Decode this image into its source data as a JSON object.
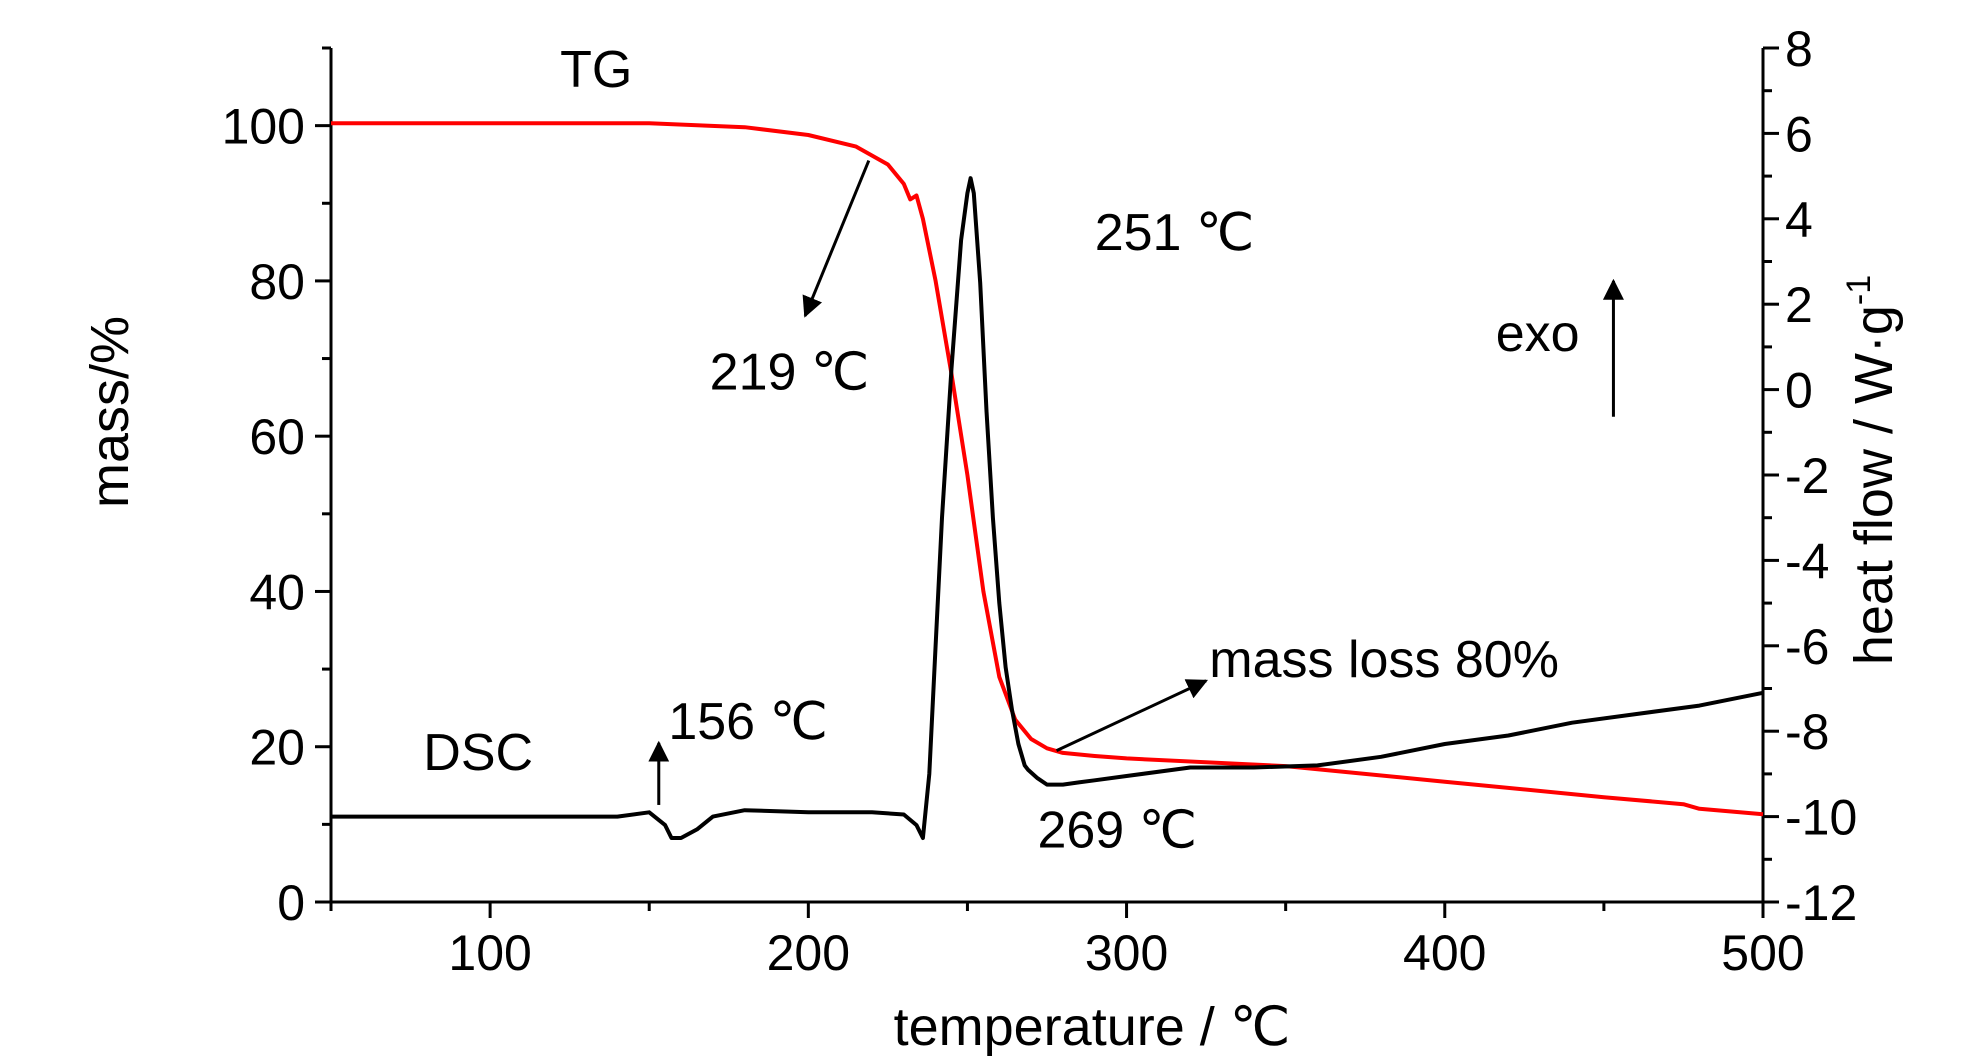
{
  "chart_data": {
    "type": "line",
    "xlabel": "temperature / ℃",
    "ylabel_left": "mass/%",
    "ylabel_right": "heat flow / W·g",
    "ylabel_right_superscript": "-1",
    "xlim": [
      50,
      500
    ],
    "ylim_left": [
      0,
      110
    ],
    "ylim_right": [
      -12,
      8
    ],
    "x_ticks": [
      100,
      200,
      300,
      400,
      500
    ],
    "y_left_ticks": [
      0,
      20,
      40,
      60,
      80,
      100
    ],
    "y_right_ticks": [
      -12,
      -10,
      -8,
      -6,
      -4,
      -2,
      0,
      2,
      4,
      6,
      8
    ],
    "series": [
      {
        "name": "TG",
        "axis": "left",
        "color": "#ff0000",
        "x": [
          50,
          100,
          150,
          180,
          200,
          215,
          225,
          230,
          232,
          234,
          236,
          240,
          245,
          250,
          255,
          260,
          265,
          270,
          275,
          280,
          290,
          300,
          350,
          400,
          450,
          475,
          480,
          500
        ],
        "y": [
          100.3,
          100.3,
          100.3,
          99.8,
          98.8,
          97.3,
          95.0,
          92.5,
          90.5,
          91.0,
          88.0,
          80.0,
          68.0,
          55.0,
          40.0,
          29.0,
          23.5,
          21.0,
          19.8,
          19.2,
          18.8,
          18.5,
          17.5,
          15.5,
          13.5,
          12.6,
          12.0,
          11.3
        ]
      },
      {
        "name": "DSC",
        "axis": "right",
        "color": "#000000",
        "x": [
          50,
          100,
          140,
          150,
          155,
          157,
          160,
          165,
          170,
          180,
          200,
          220,
          230,
          234,
          236,
          238,
          240,
          242,
          245,
          248,
          250,
          251,
          252,
          254,
          256,
          258,
          260,
          262,
          264,
          266,
          268,
          269,
          272,
          275,
          280,
          285,
          290,
          300,
          320,
          340,
          360,
          380,
          400,
          420,
          440,
          460,
          480,
          500
        ],
        "y": [
          -10.0,
          -10.0,
          -10.0,
          -9.9,
          -10.2,
          -10.5,
          -10.5,
          -10.3,
          -10.0,
          -9.85,
          -9.9,
          -9.9,
          -9.95,
          -10.2,
          -10.5,
          -9.0,
          -6.0,
          -3.0,
          0.5,
          3.5,
          4.6,
          4.95,
          4.6,
          2.5,
          -0.5,
          -3.0,
          -5.0,
          -6.5,
          -7.5,
          -8.3,
          -8.8,
          -8.9,
          -9.1,
          -9.25,
          -9.25,
          -9.2,
          -9.15,
          -9.05,
          -8.85,
          -8.85,
          -8.8,
          -8.6,
          -8.3,
          -8.1,
          -7.8,
          -7.6,
          -7.4,
          -7.1
        ]
      }
    ],
    "annotations": [
      {
        "text": "TG",
        "x": 122,
        "y": 105,
        "axis": "left"
      },
      {
        "text": "DSC",
        "x": 79,
        "y": 17,
        "axis": "left"
      },
      {
        "text": "219 ℃",
        "x": 169,
        "y": 66,
        "axis": "left"
      },
      {
        "text": "251 ℃",
        "x": 290,
        "y": 84,
        "axis": "left"
      },
      {
        "text": "156 ℃",
        "x": 156,
        "y": 21,
        "axis": "left"
      },
      {
        "text": "269 ℃",
        "x": 272,
        "y": 7,
        "axis": "left"
      },
      {
        "text": "mass loss 80%",
        "x": 326,
        "y": 29,
        "axis": "left"
      },
      {
        "text": "exo",
        "x": 416,
        "y": 71,
        "axis": "left"
      }
    ],
    "arrows": [
      {
        "from": [
          219,
          95.5
        ],
        "to": [
          199,
          75.5
        ]
      },
      {
        "from": [
          153,
          12.5
        ],
        "to": [
          153,
          20.5
        ]
      },
      {
        "from": [
          278,
          19.5
        ],
        "to": [
          325,
          28.5
        ]
      },
      {
        "from": [
          453,
          62.5
        ],
        "to": [
          453,
          80
        ]
      }
    ],
    "grid": false,
    "legend": "none"
  }
}
